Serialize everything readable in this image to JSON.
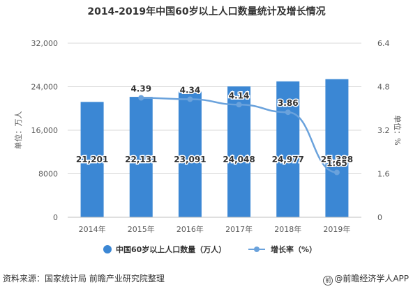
{
  "title": "2014-2019年中国60岁以上人口数量统计及增长情况",
  "source": "资料来源：国家统计局 前瞻产业研究院整理",
  "brand": "@前瞻经济学人APP",
  "colors": {
    "bar": "#3b87d4",
    "line": "#6aa2dc",
    "grid": "#d9d9d9",
    "axis": "#595959"
  },
  "chart_data": {
    "type": "bar",
    "categories": [
      "2014年",
      "2015年",
      "2016年",
      "2017年",
      "2018年",
      "2019年"
    ],
    "series": [
      {
        "name": "中国60岁以上人口数量（万人）",
        "type": "bar",
        "axis": "left",
        "values": [
          21201,
          22131,
          23091,
          24048,
          24977,
          25388
        ],
        "labels": [
          "21,201",
          "22,131",
          "23,091",
          "24,048",
          "24,977",
          "25,388"
        ]
      },
      {
        "name": "增长率（%）",
        "type": "line",
        "axis": "right",
        "x": [
          "2015年",
          "2016年",
          "2017年",
          "2018年",
          "2019年"
        ],
        "values": [
          4.39,
          4.34,
          4.14,
          3.86,
          1.65
        ],
        "labels": [
          "4.39",
          "4.34",
          "4.14",
          "3.86",
          "1.65"
        ]
      }
    ],
    "ylabel": "单位：万人",
    "y2label": "单位：%",
    "ylim": [
      0,
      32000
    ],
    "y2lim": [
      0,
      6.4
    ],
    "yticks": [
      "0",
      "8000",
      "16,000",
      "24,000",
      "32,000"
    ],
    "y2ticks": [
      "0",
      "1.6",
      "3.2",
      "4.8",
      "6.4"
    ],
    "grid": true,
    "legend": "bottom"
  }
}
